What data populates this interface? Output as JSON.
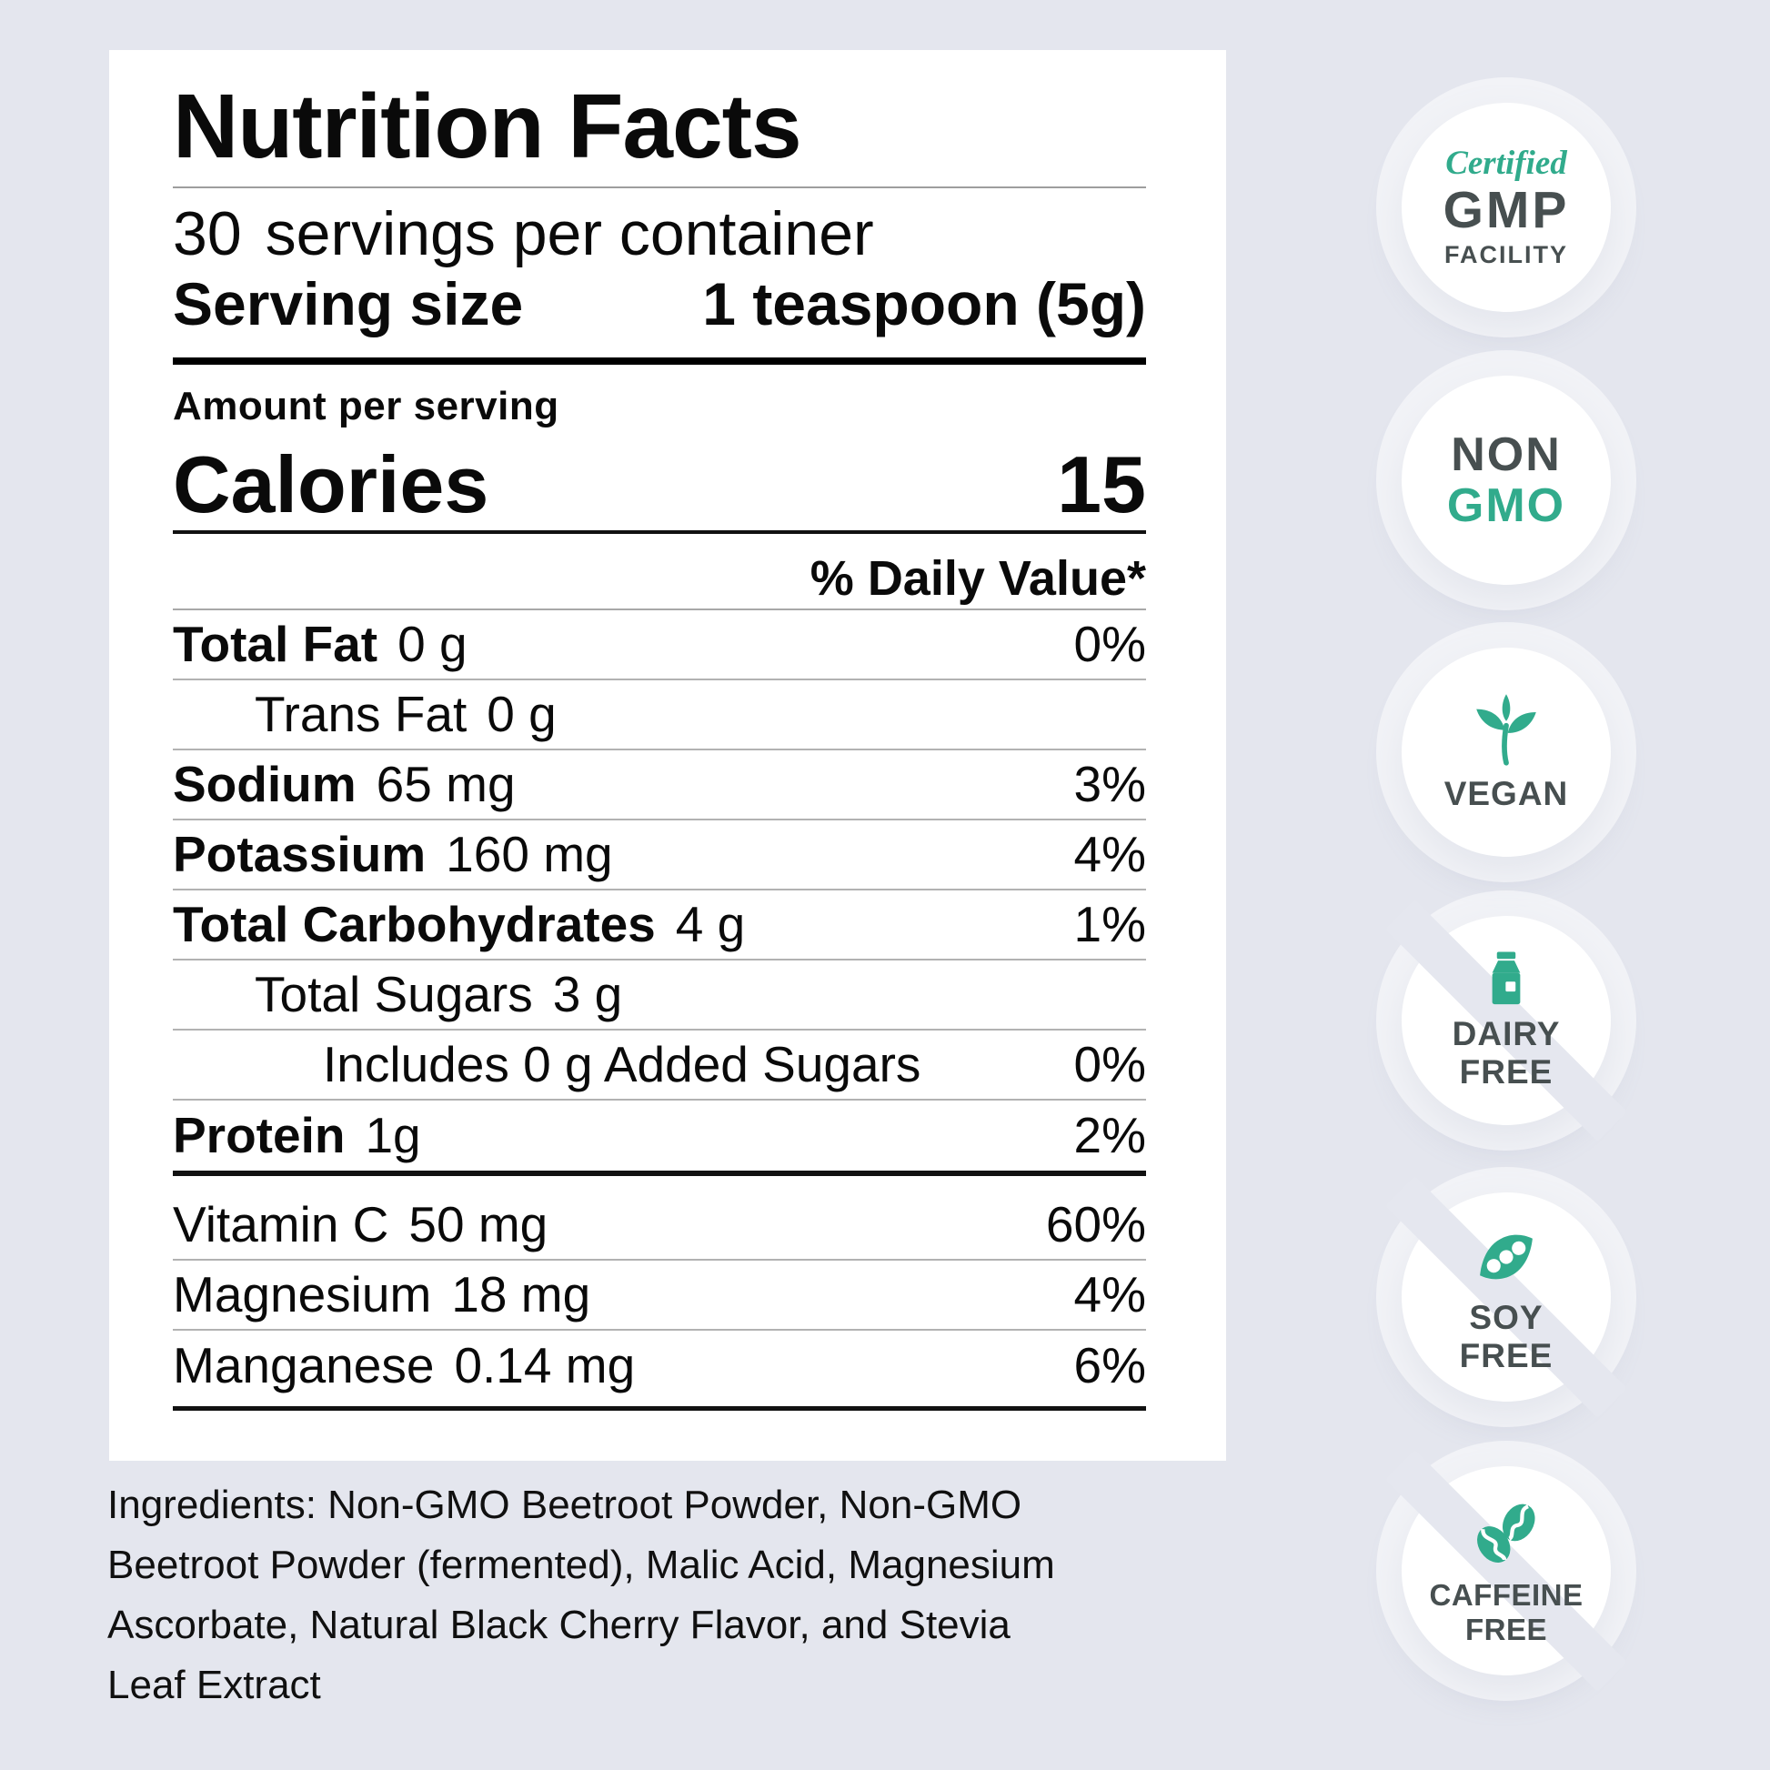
{
  "colors": {
    "accent_teal": "#31AB8C",
    "badge_text_dark": "#474F50",
    "page_background": "#E4E6EE",
    "label_text": "#0A0A0A"
  },
  "panel": {
    "title": "Nutrition Facts",
    "servings_per_container": {
      "count": "30",
      "text": "servings per container"
    },
    "serving_size": {
      "label": "Serving size",
      "value": "1 teaspoon (5g)"
    },
    "amount_per_serving_label": "Amount per serving",
    "calories": {
      "label": "Calories",
      "value": "15"
    },
    "daily_value_header": "% Daily Value*",
    "nutrient_rows": [
      {
        "name": "Total Fat",
        "amount": "0 g",
        "daily_value": "0%",
        "bold": true,
        "indent": 0
      },
      {
        "name": "Trans Fat",
        "amount": "0 g",
        "daily_value": "",
        "bold": false,
        "indent": 1
      },
      {
        "name": "Sodium",
        "amount": "65 mg",
        "daily_value": "3%",
        "bold": true,
        "indent": 0
      },
      {
        "name": "Potassium",
        "amount": "160 mg",
        "daily_value": "4%",
        "bold": true,
        "indent": 0
      },
      {
        "name": "Total Carbohydrates",
        "amount": "4 g",
        "daily_value": "1%",
        "bold": true,
        "indent": 0
      },
      {
        "name": "Total Sugars",
        "amount": "3 g",
        "daily_value": "",
        "bold": false,
        "indent": 1
      },
      {
        "name": "Includes 0 g Added Sugars",
        "amount": "",
        "daily_value": "0%",
        "bold": false,
        "indent": 2
      },
      {
        "name": "Protein",
        "amount": "1g",
        "daily_value": "2%",
        "bold": true,
        "indent": 0
      }
    ],
    "micronutrient_rows": [
      {
        "name": "Vitamin C",
        "amount": "50 mg",
        "daily_value": "60%"
      },
      {
        "name": "Magnesium",
        "amount": "18 mg",
        "daily_value": "4%"
      },
      {
        "name": "Manganese",
        "amount": "0.14 mg",
        "daily_value": "6%"
      }
    ]
  },
  "ingredients": {
    "lines": [
      "Ingredients: Non-GMO Beetroot Powder, Non-GMO",
      "Beetroot Powder (fermented), Malic Acid, Magnesium",
      "Ascorbate, Natural Black Cherry Flavor, and Stevia",
      "Leaf Extract"
    ]
  },
  "badges": [
    {
      "name": "certified-gmp-facility",
      "icon": null,
      "slash": false,
      "lines": [
        {
          "text": "Certified",
          "style": "script"
        },
        {
          "text": "GMP",
          "style": "big"
        },
        {
          "text": "FACILITY",
          "style": "small"
        }
      ]
    },
    {
      "name": "non-gmo",
      "icon": null,
      "slash": false,
      "lines": [
        {
          "text": "NON",
          "style": "big-dark"
        },
        {
          "text": "GMO",
          "style": "big-teal"
        }
      ]
    },
    {
      "name": "vegan",
      "icon": "leaf",
      "slash": false,
      "lines": [
        {
          "text": "VEGAN",
          "style": "caps"
        }
      ]
    },
    {
      "name": "dairy-free",
      "icon": "milk-carton",
      "slash": true,
      "lines": [
        {
          "text": "DAIRY",
          "style": "caps"
        },
        {
          "text": "FREE",
          "style": "caps"
        }
      ]
    },
    {
      "name": "soy-free",
      "icon": "pea-pod",
      "slash": true,
      "lines": [
        {
          "text": "SOY",
          "style": "caps"
        },
        {
          "text": "FREE",
          "style": "caps"
        }
      ]
    },
    {
      "name": "caffeine-free",
      "icon": "coffee-beans",
      "slash": true,
      "lines": [
        {
          "text": "CAFFEINE",
          "style": "caps-small"
        },
        {
          "text": "FREE",
          "style": "caps-small"
        }
      ]
    }
  ]
}
